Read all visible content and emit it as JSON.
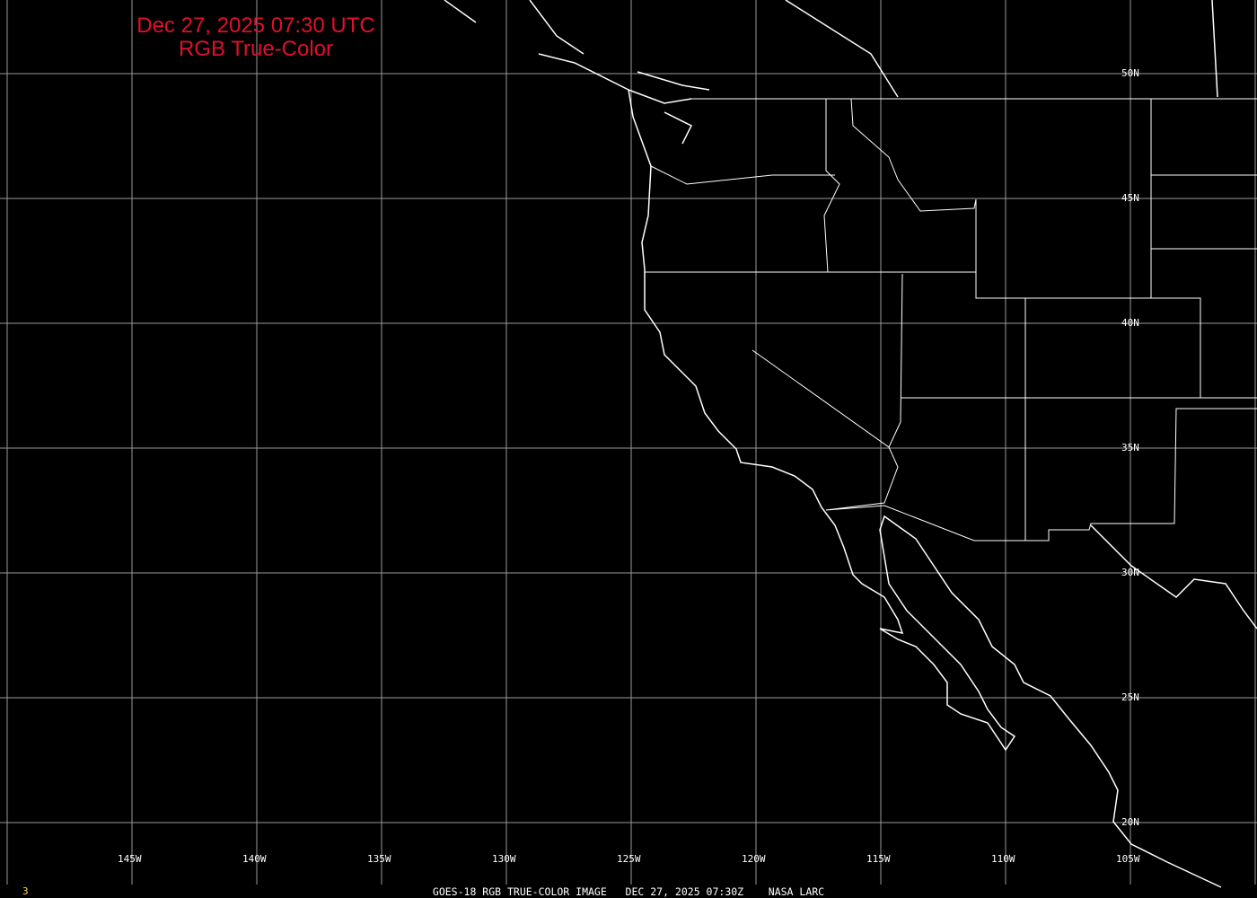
{
  "title": {
    "line1": "Dec 27, 2025 07:30 UTC",
    "line2": "RGB True-Color",
    "color": "#e0102a"
  },
  "lat_labels": [
    "50N",
    "45N",
    "40N",
    "35N",
    "30N",
    "25N",
    "20N"
  ],
  "lon_labels": [
    "145W",
    "140W",
    "135W",
    "130W",
    "125W",
    "120W",
    "115W",
    "110W",
    "105W"
  ],
  "footer": {
    "caption": "GOES-18 RGB TRUE-COLOR IMAGE   DEC 27, 2025 07:30Z    NASA LARC",
    "frame_number": "3"
  },
  "colors": {
    "background": "#000000",
    "grid": "#9a9a9a",
    "coastline": "#ffffff"
  }
}
